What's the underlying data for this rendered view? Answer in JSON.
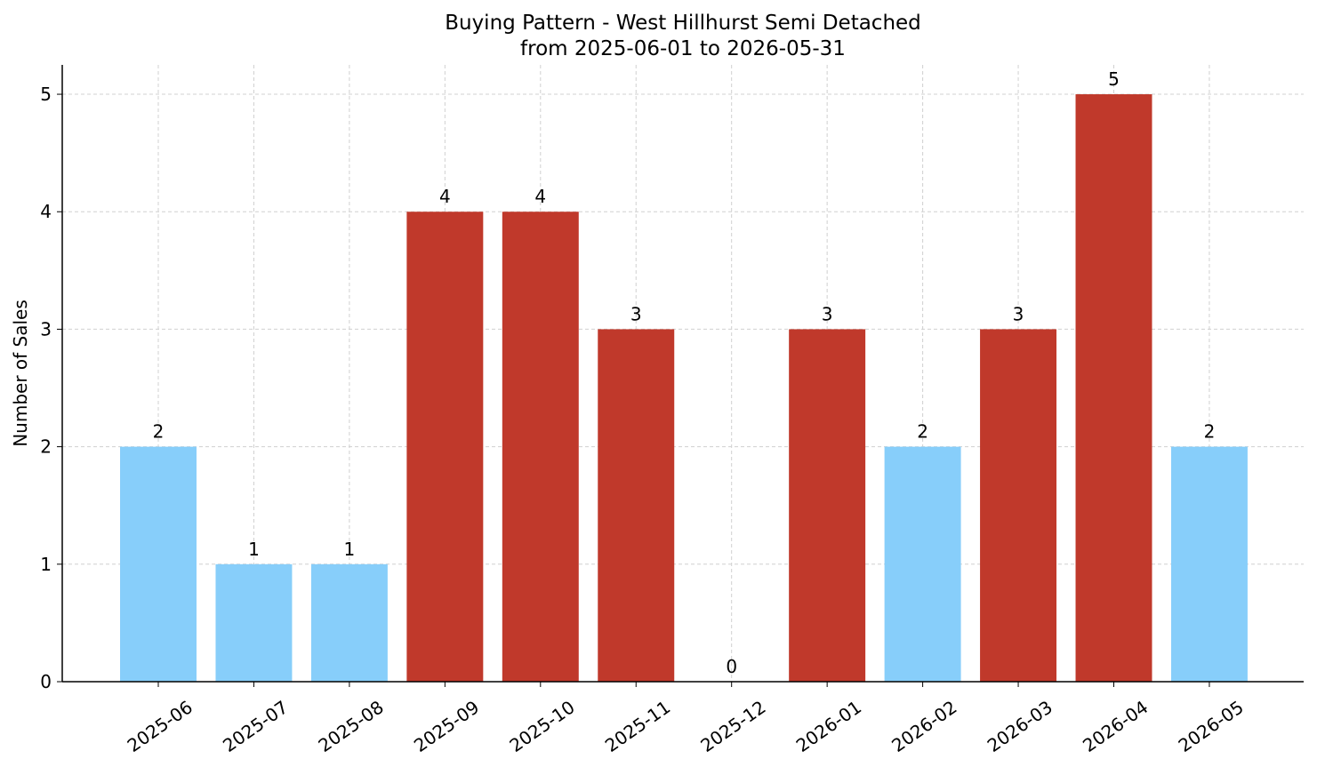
{
  "chart_data": {
    "type": "bar",
    "title": "Buying Pattern - West Hillhurst Semi Detached",
    "subtitle": "from 2025-06-01 to 2026-05-31",
    "y_label": "Number of Sales",
    "categories": [
      "2025-06",
      "2025-07",
      "2025-08",
      "2025-09",
      "2025-10",
      "2025-11",
      "2025-12",
      "2026-01",
      "2026-02",
      "2026-03",
      "2026-04",
      "2026-05"
    ],
    "values": [
      2,
      1,
      1,
      4,
      4,
      3,
      0,
      3,
      2,
      3,
      5,
      2
    ],
    "colors": [
      "#87cefa",
      "#87cefa",
      "#87cefa",
      "#c0392b",
      "#c0392b",
      "#c0392b",
      "#87cefa",
      "#c0392b",
      "#87cefa",
      "#c0392b",
      "#c0392b",
      "#87cefa"
    ],
    "ylim": [
      0,
      5.25
    ],
    "yticks": [
      0,
      1,
      2,
      3,
      4,
      5
    ],
    "grid": true
  }
}
